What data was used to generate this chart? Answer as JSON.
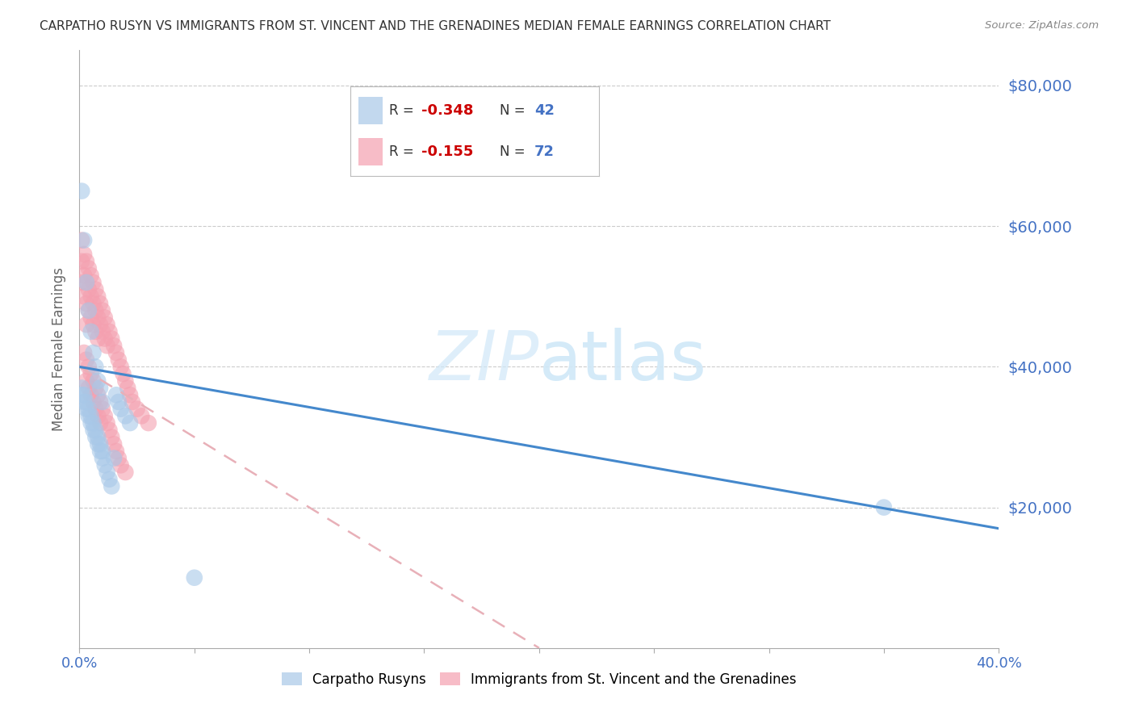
{
  "title": "CARPATHO RUSYN VS IMMIGRANTS FROM ST. VINCENT AND THE GRENADINES MEDIAN FEMALE EARNINGS CORRELATION CHART",
  "source": "Source: ZipAtlas.com",
  "ylabel": "Median Female Earnings",
  "ytick_values": [
    0,
    20000,
    40000,
    60000,
    80000
  ],
  "ytick_right_labels": [
    "$20,000",
    "$40,000",
    "$60,000",
    "$80,000"
  ],
  "ytick_right_values": [
    20000,
    40000,
    60000,
    80000
  ],
  "ylim": [
    0,
    85000
  ],
  "xlim": [
    0,
    0.4
  ],
  "legend1_r": "-0.348",
  "legend1_n": "42",
  "legend2_r": "-0.155",
  "legend2_n": "72",
  "blue_color": "#a8c8e8",
  "pink_color": "#f4a0b0",
  "blue_line_color": "#4488cc",
  "pink_line_color": "#e8b0b8",
  "title_color": "#333333",
  "right_label_color": "#4472c4",
  "watermark_color": "#d0e8f8",
  "legend_text_color": "#333333",
  "legend_value_color": "#cc0000",
  "legend_N_color": "#4472c4",
  "blue_scatter_x": [
    0.001,
    0.001,
    0.002,
    0.002,
    0.003,
    0.003,
    0.004,
    0.004,
    0.005,
    0.005,
    0.006,
    0.006,
    0.007,
    0.007,
    0.008,
    0.008,
    0.009,
    0.009,
    0.01,
    0.01,
    0.011,
    0.012,
    0.013,
    0.014,
    0.015,
    0.016,
    0.017,
    0.018,
    0.02,
    0.022,
    0.001,
    0.002,
    0.003,
    0.004,
    0.005,
    0.006,
    0.007,
    0.008,
    0.009,
    0.01,
    0.35,
    0.05
  ],
  "blue_scatter_y": [
    65000,
    36000,
    58000,
    35000,
    52000,
    34000,
    48000,
    33000,
    45000,
    32000,
    42000,
    31000,
    40000,
    30000,
    38000,
    29000,
    37000,
    28000,
    35000,
    27000,
    26000,
    25000,
    24000,
    23000,
    27000,
    36000,
    35000,
    34000,
    33000,
    32000,
    37000,
    36000,
    35000,
    34000,
    33000,
    32000,
    31000,
    30000,
    29000,
    28000,
    20000,
    10000
  ],
  "pink_scatter_x": [
    0.001,
    0.001,
    0.001,
    0.002,
    0.002,
    0.002,
    0.003,
    0.003,
    0.003,
    0.003,
    0.004,
    0.004,
    0.004,
    0.005,
    0.005,
    0.005,
    0.006,
    0.006,
    0.006,
    0.007,
    0.007,
    0.007,
    0.008,
    0.008,
    0.008,
    0.009,
    0.009,
    0.01,
    0.01,
    0.011,
    0.011,
    0.012,
    0.012,
    0.013,
    0.014,
    0.015,
    0.016,
    0.017,
    0.018,
    0.019,
    0.02,
    0.021,
    0.022,
    0.023,
    0.025,
    0.027,
    0.03,
    0.002,
    0.003,
    0.004,
    0.005,
    0.006,
    0.007,
    0.008,
    0.009,
    0.01,
    0.011,
    0.012,
    0.013,
    0.014,
    0.015,
    0.016,
    0.017,
    0.018,
    0.02,
    0.003,
    0.004,
    0.005,
    0.006,
    0.007,
    0.008,
    0.009
  ],
  "pink_scatter_y": [
    58000,
    55000,
    52000,
    56000,
    53000,
    50000,
    55000,
    52000,
    49000,
    46000,
    54000,
    51000,
    48000,
    53000,
    50000,
    47000,
    52000,
    49000,
    46000,
    51000,
    48000,
    45000,
    50000,
    47000,
    44000,
    49000,
    46000,
    48000,
    45000,
    47000,
    44000,
    46000,
    43000,
    45000,
    44000,
    43000,
    42000,
    41000,
    40000,
    39000,
    38000,
    37000,
    36000,
    35000,
    34000,
    33000,
    32000,
    42000,
    41000,
    40000,
    39000,
    38000,
    37000,
    36000,
    35000,
    34000,
    33000,
    32000,
    31000,
    30000,
    29000,
    28000,
    27000,
    26000,
    25000,
    38000,
    37000,
    36000,
    35000,
    34000,
    33000,
    32000
  ],
  "blue_line_x": [
    0.0,
    0.4
  ],
  "blue_line_y": [
    40000,
    17000
  ],
  "pink_line_x": [
    0.0,
    0.2
  ],
  "pink_line_y": [
    40000,
    0
  ]
}
